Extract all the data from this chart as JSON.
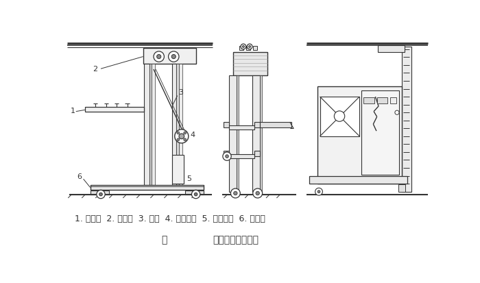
{
  "title_label": "图",
  "title_main": "巷道堆垛机的结构",
  "caption": "1. 载货台  2. 上横梁  3. 立柱  4. 起升机构  5. 运行机构  6. 下横梁",
  "line_color": "#333333",
  "fig_width": 7.0,
  "fig_height": 4.14,
  "dpi": 100
}
